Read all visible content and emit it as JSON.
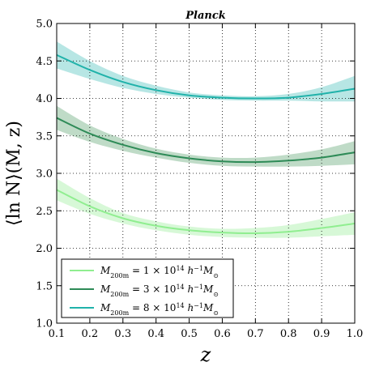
{
  "chart_data": {
    "type": "line",
    "title": "Planck",
    "xlabel": "z",
    "ylabel": "⟨ln N⟩(M, z)",
    "xlim": [
      0.1,
      1.0
    ],
    "ylim": [
      1.0,
      5.0
    ],
    "xticks": [
      "0.1",
      "0.2",
      "0.3",
      "0.4",
      "0.5",
      "0.6",
      "0.7",
      "0.8",
      "0.9",
      "1.0"
    ],
    "yticks": [
      "1.0",
      "1.5",
      "2.0",
      "2.5",
      "3.0",
      "3.5",
      "4.0",
      "4.5",
      "5.0"
    ],
    "grid": true,
    "legend_position": "lower-left",
    "x": [
      0.1,
      0.2,
      0.3,
      0.4,
      0.5,
      0.6,
      0.7,
      0.8,
      0.9,
      1.0
    ],
    "series": [
      {
        "name": "M200m = 1 × 10^14 h^-1 M⊙",
        "color": "#90ee90",
        "band_color": "#c9f5c9",
        "values": [
          2.78,
          2.56,
          2.4,
          2.3,
          2.24,
          2.21,
          2.2,
          2.22,
          2.27,
          2.33
        ],
        "lower": [
          2.64,
          2.46,
          2.33,
          2.24,
          2.18,
          2.15,
          2.14,
          2.14,
          2.16,
          2.18
        ],
        "upper": [
          2.93,
          2.67,
          2.47,
          2.36,
          2.29,
          2.26,
          2.27,
          2.31,
          2.39,
          2.48
        ]
      },
      {
        "name": "M200m = 3 × 10^14 h^-1 M⊙",
        "color": "#2e8b57",
        "band_color": "#a9cfb4",
        "values": [
          3.74,
          3.53,
          3.38,
          3.27,
          3.2,
          3.16,
          3.15,
          3.17,
          3.21,
          3.28
        ],
        "lower": [
          3.58,
          3.42,
          3.3,
          3.21,
          3.14,
          3.1,
          3.09,
          3.09,
          3.1,
          3.12
        ],
        "upper": [
          3.9,
          3.64,
          3.46,
          3.33,
          3.25,
          3.21,
          3.21,
          3.25,
          3.32,
          3.43
        ]
      },
      {
        "name": "M200m = 8 × 10^14 h^-1 M⊙",
        "color": "#20b2aa",
        "band_color": "#9fdedb",
        "values": [
          4.58,
          4.38,
          4.22,
          4.11,
          4.04,
          4.01,
          4.0,
          4.01,
          4.06,
          4.13
        ],
        "lower": [
          4.4,
          4.26,
          4.14,
          4.06,
          4.01,
          3.98,
          3.97,
          3.97,
          3.96,
          3.96
        ],
        "upper": [
          4.76,
          4.5,
          4.3,
          4.17,
          4.08,
          4.04,
          4.03,
          4.06,
          4.15,
          4.3
        ]
      }
    ]
  }
}
